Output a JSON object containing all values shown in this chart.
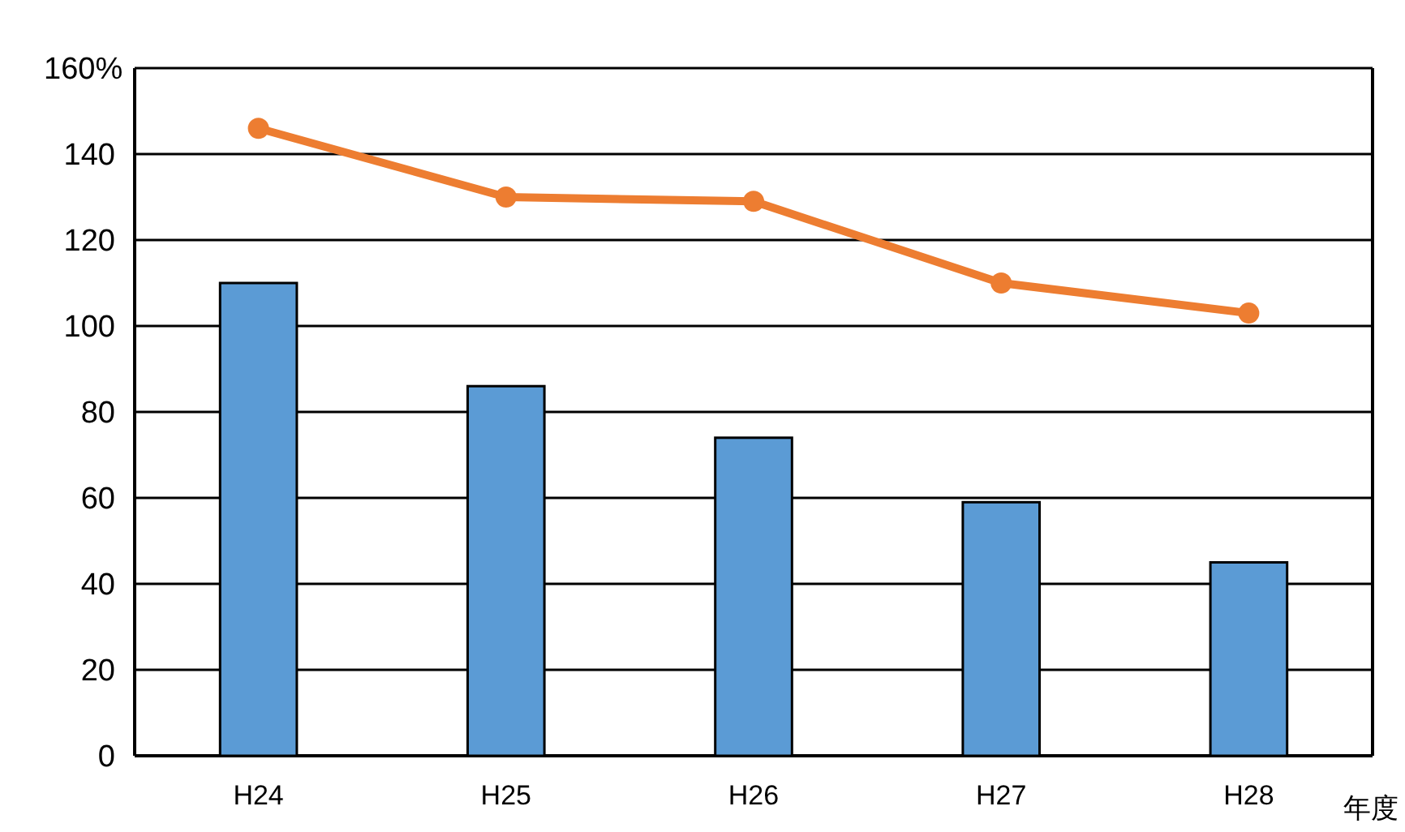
{
  "chart_data": {
    "type": "bar",
    "xlabel": "年度",
    "categories": [
      "H24",
      "H25",
      "H26",
      "H27",
      "H28"
    ],
    "series": [
      {
        "color": "#5b9bd5",
        "values": [
          110,
          86,
          74,
          59,
          45
        ]
      },
      {
        "type": "line",
        "color": "#ed7d31",
        "values": [
          146,
          130,
          129,
          110,
          103
        ],
        "marker": "circle"
      }
    ],
    "ylim": [
      0,
      160
    ],
    "yticks": [
      0,
      20,
      40,
      60,
      80,
      100,
      120,
      140,
      {
        "value": 160,
        "label": "160%"
      }
    ],
    "grid": "y"
  }
}
